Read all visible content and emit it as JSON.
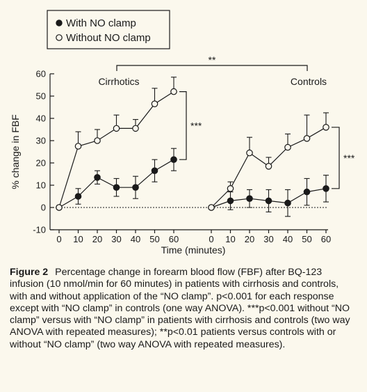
{
  "chart_data": {
    "type": "line",
    "ylabel": "% change in FBF",
    "xlabel": "Time (minutes)",
    "ylim": [
      -10,
      60
    ],
    "yticks": [
      -10,
      0,
      10,
      20,
      30,
      40,
      50,
      60
    ],
    "xticks": [
      0,
      10,
      20,
      30,
      40,
      50,
      60
    ],
    "zero_line": "dotted",
    "legend": {
      "placement": "top-left",
      "entries": [
        {
          "label": "With NO clamp",
          "marker": "filled-circle"
        },
        {
          "label": "Without NO clamp",
          "marker": "open-circle"
        }
      ]
    },
    "panels": [
      {
        "name": "Cirrhotics",
        "x": [
          0,
          10,
          20,
          30,
          40,
          50,
          60
        ],
        "series": [
          {
            "name": "With NO clamp",
            "values": [
              0,
              5,
              13.5,
              9,
              9,
              16.5,
              21.5
            ],
            "err": [
              0,
              3.5,
              3,
              4,
              5,
              5,
              5
            ]
          },
          {
            "name": "Without NO clamp",
            "values": [
              0,
              27.5,
              30,
              35.5,
              35.5,
              46.5,
              52
            ],
            "err": [
              0,
              6.5,
              5,
              6,
              4,
              7,
              6.5
            ]
          }
        ],
        "significance": "***"
      },
      {
        "name": "Controls",
        "x": [
          0,
          10,
          20,
          30,
          40,
          50,
          60
        ],
        "series": [
          {
            "name": "With NO clamp",
            "values": [
              0,
              3,
              4,
              3,
              2,
              7,
              8.5
            ],
            "err": [
              0,
              4,
              4,
              5,
              6,
              6,
              6
            ]
          },
          {
            "name": "Without NO clamp",
            "values": [
              0,
              8.5,
              24.5,
              18.5,
              27,
              31,
              36
            ],
            "err": [
              0,
              3,
              7,
              4,
              6,
              10.5,
              6.5
            ]
          }
        ],
        "significance": "***"
      }
    ],
    "between_panels_significance": "**"
  },
  "caption": {
    "figure_label": "Figure 2",
    "text": "Percentage change in forearm blood flow (FBF) after BQ-123 infusion (10 nmol/min for 60 minutes) in patients with cirrhosis and controls, with and without application of the “NO clamp”. p<0.001 for each response except with “NO clamp” in controls (one way ANOVA). ***p<0.001 without “NO clamp” versus with “NO clamp” in patients with cirrhosis and controls (two way ANOVA with repeated measures); **p<0.01 patients versus controls with or without “NO clamp” (two way ANOVA with repeated measures)."
  }
}
